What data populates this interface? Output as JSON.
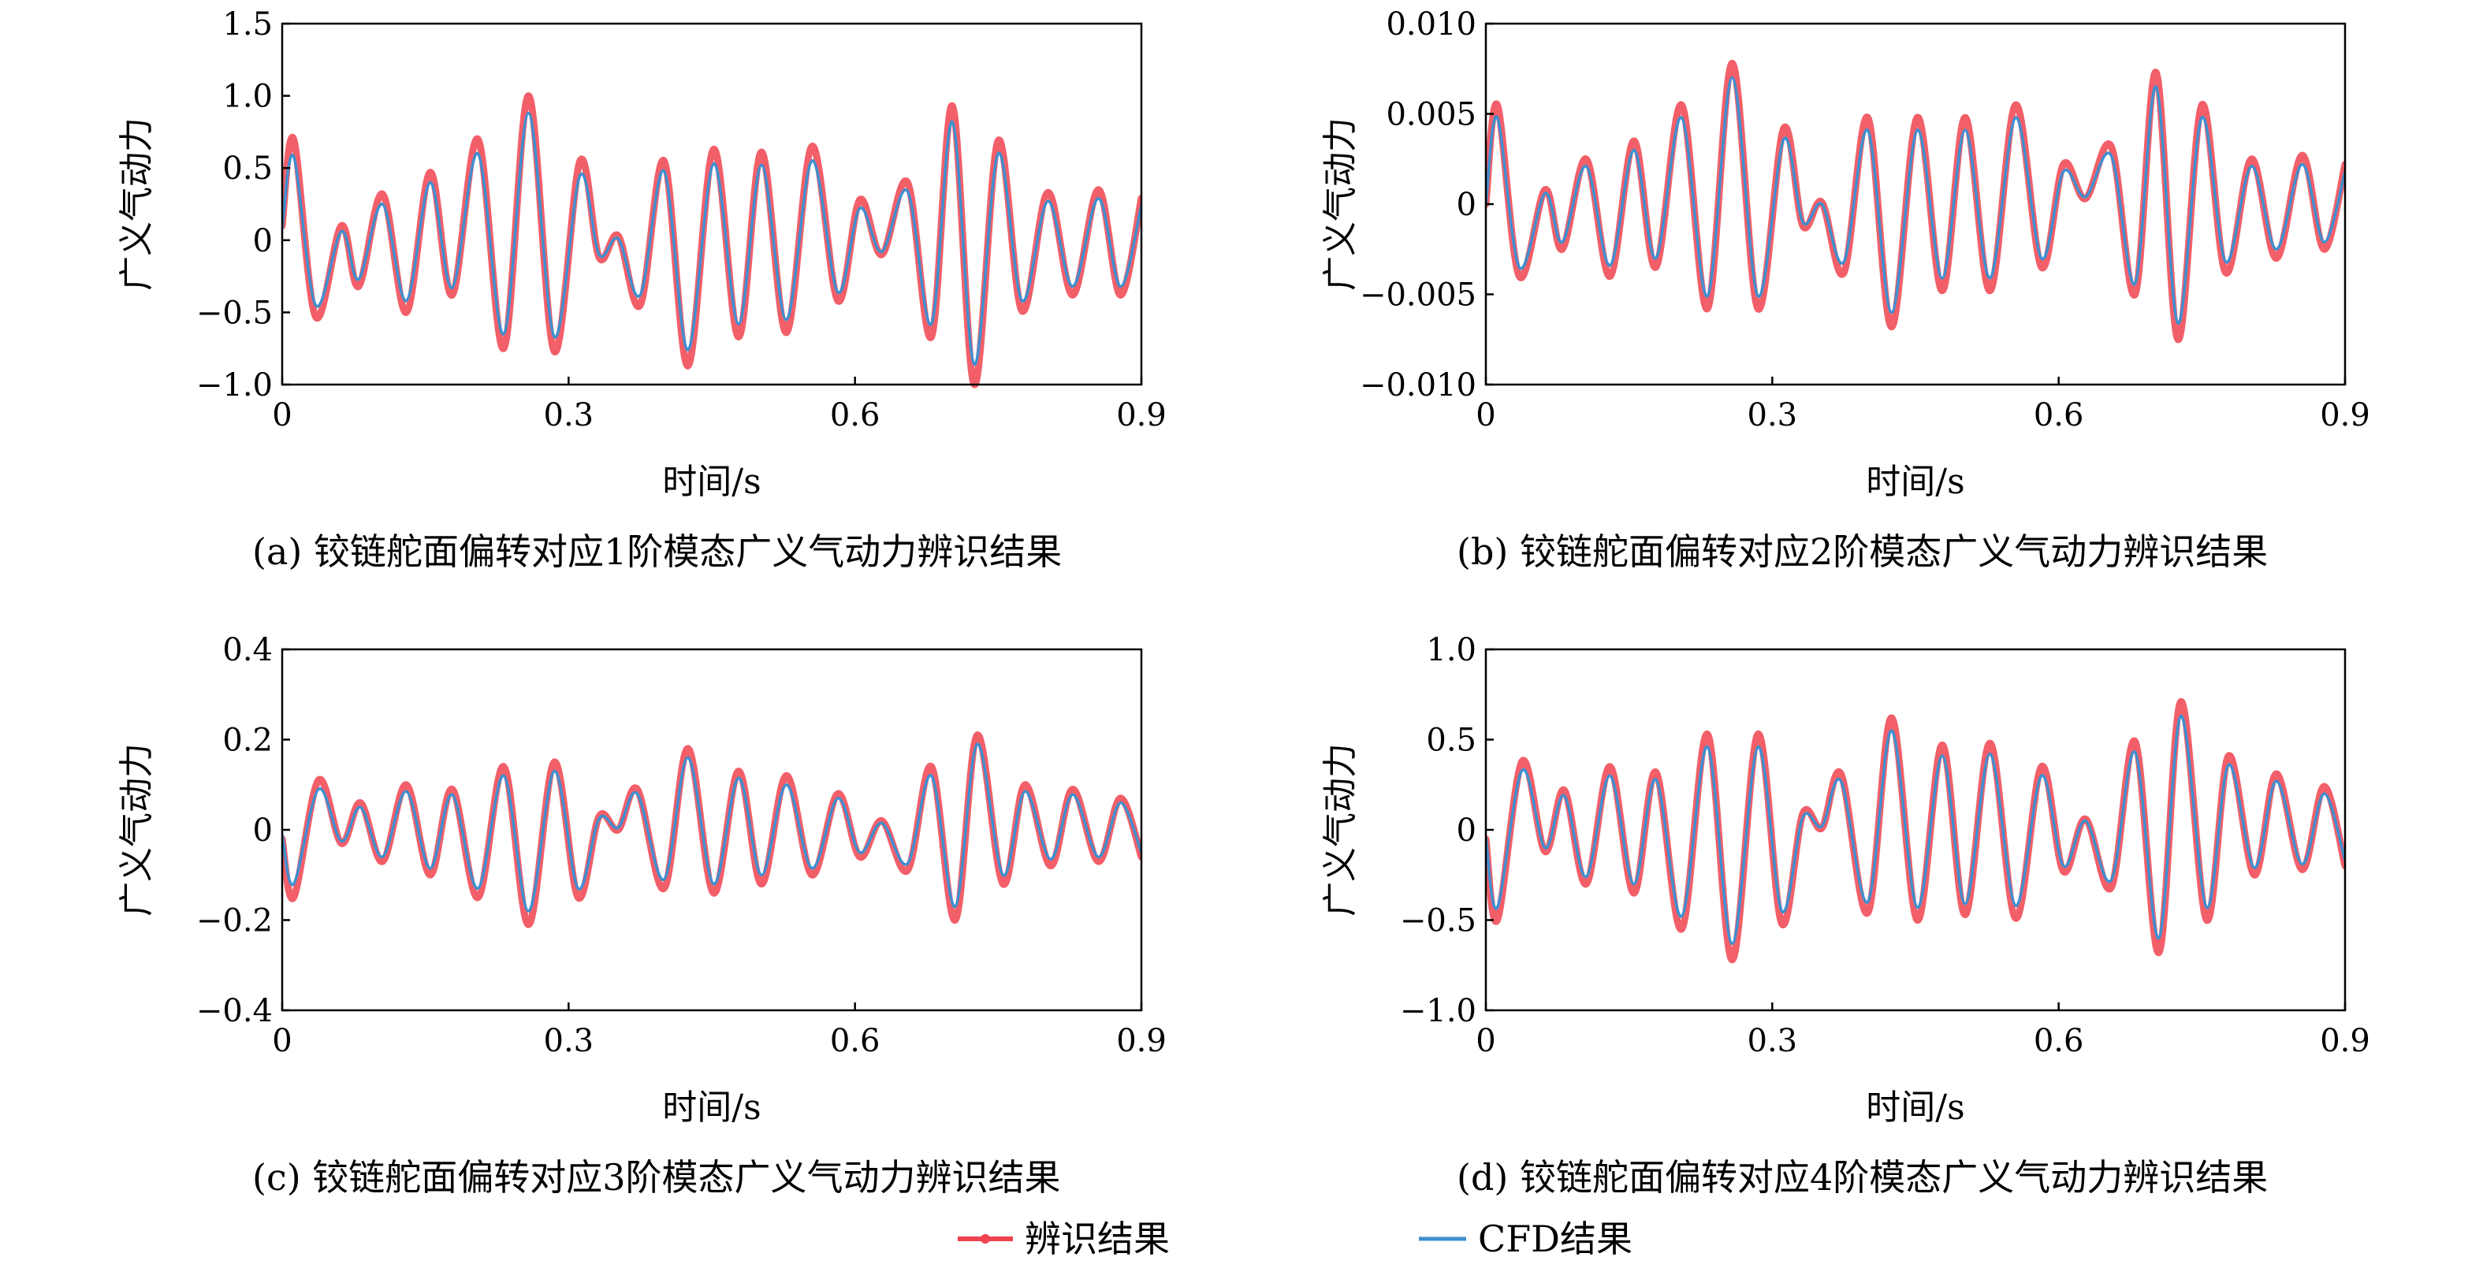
{
  "colors": {
    "identified": "#f0434f",
    "cfd": "#3f8fd0"
  },
  "legend": {
    "items": [
      {
        "label": "辨识结果",
        "key": "identified"
      },
      {
        "label": "CFD结果",
        "key": "cfd"
      }
    ]
  },
  "chart_data": [
    {
      "type": "line",
      "caption": "(a) 铰链舵面偏转对应1阶模态广义气动力辨识结果",
      "xlabel": "时间/s",
      "ylabel": "广义气动力",
      "xlim": [
        0,
        0.9
      ],
      "ylim": [
        -1.0,
        1.5
      ],
      "xticks": [
        0,
        0.3,
        0.6,
        0.9
      ],
      "xtick_labels": [
        "0",
        "0.3",
        "0.6",
        "0.9"
      ],
      "yticks": [
        -1.0,
        -0.5,
        0,
        0.5,
        1.0,
        1.5
      ],
      "ytick_labels": [
        "−1.0",
        "−0.5",
        "0",
        "0.5",
        "1.0",
        "1.5"
      ],
      "grid": false,
      "series": [
        {
          "key": "identified",
          "x": [
            0,
            0.012,
            0.035,
            0.062,
            0.08,
            0.105,
            0.13,
            0.155,
            0.178,
            0.205,
            0.232,
            0.258,
            0.285,
            0.312,
            0.332,
            0.352,
            0.375,
            0.4,
            0.425,
            0.452,
            0.478,
            0.502,
            0.528,
            0.555,
            0.582,
            0.605,
            0.628,
            0.655,
            0.68,
            0.702,
            0.725,
            0.75,
            0.775,
            0.802,
            0.828,
            0.855,
            0.878,
            0.9
          ],
          "y": [
            0.1,
            0.7,
            -0.53,
            0.1,
            -0.32,
            0.32,
            -0.5,
            0.47,
            -0.38,
            0.7,
            -0.75,
            1.0,
            -0.77,
            0.55,
            -0.12,
            0.03,
            -0.45,
            0.55,
            -0.87,
            0.63,
            -0.67,
            0.61,
            -0.64,
            0.65,
            -0.42,
            0.28,
            -0.1,
            0.4,
            -0.67,
            0.93,
            -1.0,
            0.69,
            -0.49,
            0.33,
            -0.38,
            0.35,
            -0.38,
            0.29
          ]
        },
        {
          "key": "cfd",
          "x": [
            0,
            0.012,
            0.035,
            0.062,
            0.08,
            0.105,
            0.13,
            0.155,
            0.178,
            0.205,
            0.232,
            0.258,
            0.285,
            0.312,
            0.332,
            0.352,
            0.375,
            0.4,
            0.425,
            0.452,
            0.478,
            0.502,
            0.528,
            0.555,
            0.582,
            0.605,
            0.628,
            0.655,
            0.68,
            0.702,
            0.725,
            0.75,
            0.775,
            0.802,
            0.828,
            0.855,
            0.878,
            0.9
          ],
          "y": [
            0.08,
            0.58,
            -0.45,
            0.06,
            -0.27,
            0.25,
            -0.42,
            0.4,
            -0.33,
            0.6,
            -0.65,
            0.88,
            -0.67,
            0.45,
            -0.1,
            0.01,
            -0.38,
            0.48,
            -0.76,
            0.53,
            -0.58,
            0.52,
            -0.55,
            0.55,
            -0.36,
            0.22,
            -0.08,
            0.34,
            -0.58,
            0.82,
            -0.86,
            0.6,
            -0.42,
            0.27,
            -0.32,
            0.29,
            -0.32,
            0.24
          ]
        }
      ]
    },
    {
      "type": "line",
      "caption": "(b) 铰链舵面偏转对应2阶模态广义气动力辨识结果",
      "xlabel": "时间/s",
      "ylabel": "广义气动力",
      "xlim": [
        0,
        0.9
      ],
      "ylim": [
        -0.01,
        0.01
      ],
      "xticks": [
        0,
        0.3,
        0.6,
        0.9
      ],
      "xtick_labels": [
        "0",
        "0.3",
        "0.6",
        "0.9"
      ],
      "yticks": [
        -0.01,
        -0.005,
        0,
        0.005,
        0.01
      ],
      "ytick_labels": [
        "−0.010",
        "−0.005",
        "0",
        "0.005",
        "0.010"
      ],
      "grid": false,
      "series": [
        {
          "key": "identified",
          "x": [
            0,
            0.012,
            0.035,
            0.062,
            0.08,
            0.105,
            0.13,
            0.155,
            0.178,
            0.205,
            0.232,
            0.258,
            0.285,
            0.312,
            0.332,
            0.352,
            0.375,
            0.4,
            0.425,
            0.452,
            0.478,
            0.502,
            0.528,
            0.555,
            0.582,
            0.605,
            0.628,
            0.655,
            0.68,
            0.702,
            0.725,
            0.75,
            0.775,
            0.802,
            0.828,
            0.855,
            0.878,
            0.9
          ],
          "y": [
            0.0,
            0.0055,
            -0.004,
            0.0008,
            -0.0025,
            0.0025,
            -0.004,
            0.0035,
            -0.0035,
            0.0055,
            -0.0058,
            0.0078,
            -0.0058,
            0.0042,
            -0.0012,
            0.0001,
            -0.0038,
            0.0048,
            -0.0068,
            0.0048,
            -0.0048,
            0.0048,
            -0.0048,
            0.0055,
            -0.0035,
            0.0022,
            0.0003,
            0.0032,
            -0.005,
            0.0073,
            -0.0075,
            0.0055,
            -0.0038,
            0.0025,
            -0.003,
            0.0027,
            -0.0025,
            0.0022
          ]
        },
        {
          "key": "cfd",
          "x": [
            0,
            0.012,
            0.035,
            0.062,
            0.08,
            0.105,
            0.13,
            0.155,
            0.178,
            0.205,
            0.232,
            0.258,
            0.285,
            0.312,
            0.332,
            0.352,
            0.375,
            0.4,
            0.425,
            0.452,
            0.478,
            0.502,
            0.528,
            0.555,
            0.582,
            0.605,
            0.628,
            0.655,
            0.68,
            0.702,
            0.725,
            0.75,
            0.775,
            0.802,
            0.828,
            0.855,
            0.878,
            0.9
          ],
          "y": [
            0.0,
            0.0048,
            -0.0035,
            0.0006,
            -0.0021,
            0.0021,
            -0.0034,
            0.003,
            -0.003,
            0.0048,
            -0.0051,
            0.007,
            -0.0051,
            0.0036,
            -0.001,
            0.0,
            -0.0032,
            0.0041,
            -0.006,
            0.0041,
            -0.0041,
            0.0041,
            -0.0041,
            0.0048,
            -0.003,
            0.0018,
            0.0004,
            0.0027,
            -0.0044,
            0.0065,
            -0.0066,
            0.0048,
            -0.0032,
            0.0021,
            -0.0025,
            0.0022,
            -0.0021,
            0.0018
          ]
        }
      ]
    },
    {
      "type": "line",
      "caption": "(c) 铰链舵面偏转对应3阶模态广义气动力辨识结果",
      "xlabel": "时间/s",
      "ylabel": "广义气动力",
      "xlim": [
        0,
        0.9
      ],
      "ylim": [
        -0.4,
        0.4
      ],
      "xticks": [
        0,
        0.3,
        0.6,
        0.9
      ],
      "xtick_labels": [
        "0",
        "0.3",
        "0.6",
        "0.9"
      ],
      "yticks": [
        -0.4,
        -0.2,
        0,
        0.2,
        0.4
      ],
      "ytick_labels": [
        "−0.4",
        "−0.2",
        "0",
        "0.2",
        "0.4"
      ],
      "grid": false,
      "series": [
        {
          "key": "identified",
          "x": [
            0,
            0.012,
            0.038,
            0.062,
            0.082,
            0.105,
            0.13,
            0.155,
            0.178,
            0.205,
            0.232,
            0.258,
            0.285,
            0.31,
            0.332,
            0.352,
            0.372,
            0.4,
            0.425,
            0.452,
            0.478,
            0.502,
            0.528,
            0.555,
            0.582,
            0.605,
            0.628,
            0.655,
            0.68,
            0.705,
            0.728,
            0.755,
            0.778,
            0.805,
            0.828,
            0.855,
            0.878,
            0.9
          ],
          "y": [
            -0.02,
            -0.15,
            0.11,
            -0.03,
            0.06,
            -0.07,
            0.1,
            -0.1,
            0.09,
            -0.15,
            0.14,
            -0.21,
            0.15,
            -0.15,
            0.03,
            0.0,
            0.09,
            -0.13,
            0.18,
            -0.14,
            0.13,
            -0.12,
            0.12,
            -0.1,
            0.08,
            -0.06,
            0.02,
            -0.09,
            0.14,
            -0.2,
            0.21,
            -0.12,
            0.1,
            -0.08,
            0.09,
            -0.07,
            0.07,
            -0.06
          ]
        },
        {
          "key": "cfd",
          "x": [
            0,
            0.012,
            0.038,
            0.062,
            0.082,
            0.105,
            0.13,
            0.155,
            0.178,
            0.205,
            0.232,
            0.258,
            0.285,
            0.31,
            0.332,
            0.352,
            0.372,
            0.4,
            0.425,
            0.452,
            0.478,
            0.502,
            0.528,
            0.555,
            0.582,
            0.605,
            0.628,
            0.655,
            0.68,
            0.705,
            0.728,
            0.755,
            0.778,
            0.805,
            0.828,
            0.855,
            0.878,
            0.9
          ],
          "y": [
            -0.01,
            -0.12,
            0.09,
            -0.025,
            0.05,
            -0.06,
            0.085,
            -0.085,
            0.078,
            -0.13,
            0.12,
            -0.18,
            0.13,
            -0.13,
            0.025,
            0.005,
            0.08,
            -0.11,
            0.16,
            -0.12,
            0.115,
            -0.1,
            0.1,
            -0.085,
            0.07,
            -0.05,
            0.015,
            -0.075,
            0.12,
            -0.17,
            0.19,
            -0.1,
            0.085,
            -0.065,
            0.078,
            -0.06,
            0.06,
            -0.05
          ]
        }
      ]
    },
    {
      "type": "line",
      "caption": "(d) 铰链舵面偏转对应4阶模态广义气动力辨识结果",
      "xlabel": "时间/s",
      "ylabel": "广义气动力",
      "xlim": [
        0,
        0.9
      ],
      "ylim": [
        -1.0,
        1.0
      ],
      "xticks": [
        0,
        0.3,
        0.6,
        0.9
      ],
      "xtick_labels": [
        "0",
        "0.3",
        "0.6",
        "0.9"
      ],
      "yticks": [
        -1.0,
        -0.5,
        0,
        0.5,
        1.0
      ],
      "ytick_labels": [
        "−1.0",
        "−0.5",
        "0",
        "0.5",
        "1.0"
      ],
      "grid": false,
      "series": [
        {
          "key": "identified",
          "x": [
            0,
            0.012,
            0.038,
            0.062,
            0.082,
            0.105,
            0.13,
            0.155,
            0.178,
            0.205,
            0.232,
            0.258,
            0.285,
            0.31,
            0.332,
            0.352,
            0.372,
            0.4,
            0.425,
            0.452,
            0.478,
            0.502,
            0.528,
            0.555,
            0.582,
            0.605,
            0.628,
            0.655,
            0.68,
            0.705,
            0.728,
            0.755,
            0.778,
            0.805,
            0.828,
            0.855,
            0.878,
            0.9
          ],
          "y": [
            -0.05,
            -0.5,
            0.38,
            -0.12,
            0.22,
            -0.3,
            0.35,
            -0.35,
            0.32,
            -0.55,
            0.53,
            -0.72,
            0.53,
            -0.52,
            0.09,
            0.01,
            0.31,
            -0.46,
            0.62,
            -0.5,
            0.47,
            -0.47,
            0.48,
            -0.49,
            0.35,
            -0.23,
            0.06,
            -0.32,
            0.49,
            -0.68,
            0.71,
            -0.5,
            0.41,
            -0.25,
            0.31,
            -0.22,
            0.24,
            -0.2
          ]
        },
        {
          "key": "cfd",
          "x": [
            0,
            0.012,
            0.038,
            0.062,
            0.082,
            0.105,
            0.13,
            0.155,
            0.178,
            0.205,
            0.232,
            0.258,
            0.285,
            0.31,
            0.332,
            0.352,
            0.372,
            0.4,
            0.425,
            0.452,
            0.478,
            0.502,
            0.528,
            0.555,
            0.582,
            0.605,
            0.628,
            0.655,
            0.68,
            0.705,
            0.728,
            0.755,
            0.778,
            0.805,
            0.828,
            0.855,
            0.878,
            0.9
          ],
          "y": [
            -0.04,
            -0.43,
            0.33,
            -0.1,
            0.19,
            -0.26,
            0.3,
            -0.3,
            0.28,
            -0.48,
            0.46,
            -0.63,
            0.46,
            -0.45,
            0.07,
            0.02,
            0.27,
            -0.4,
            0.55,
            -0.43,
            0.41,
            -0.41,
            0.42,
            -0.42,
            0.3,
            -0.2,
            0.05,
            -0.28,
            0.43,
            -0.6,
            0.63,
            -0.43,
            0.36,
            -0.21,
            0.27,
            -0.19,
            0.2,
            -0.17
          ]
        }
      ]
    }
  ]
}
